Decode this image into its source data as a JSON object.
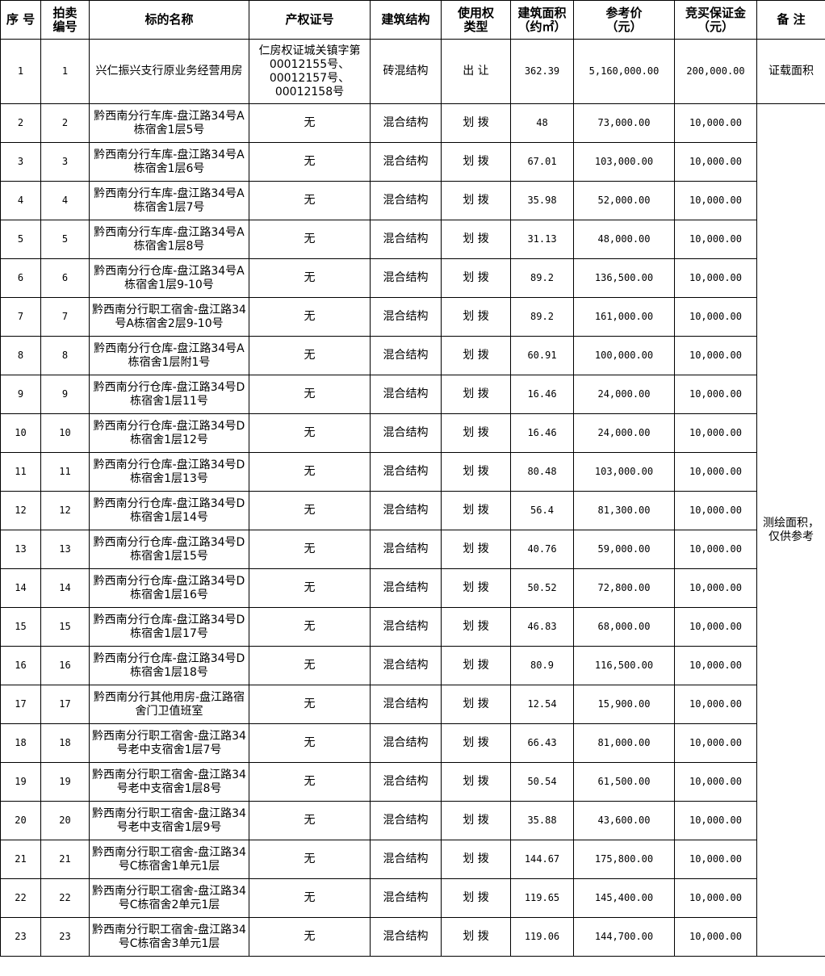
{
  "headers": [
    "序 号",
    "拍卖\n编号",
    "标的名称",
    "产权证号",
    "建筑结构",
    "使用权\n类型",
    "建筑面积\n（约㎡）",
    "参考价\n（元）",
    "竞买保证金\n（元）",
    "备 注"
  ],
  "rows": [
    {
      "seq": "1",
      "lot": "1",
      "name": "兴仁振兴支行原业务经营用房",
      "cert": "仁房权证城关镇字第00012155号、00012157号、00012158号",
      "structure": "砖混结构",
      "right": "出 让",
      "area": "362.39",
      "price": "5,160,000.00",
      "deposit": "200,000.00"
    },
    {
      "seq": "2",
      "lot": "2",
      "name": "黔西南分行车库-盘江路34号A栋宿舍1层5号",
      "cert": "无",
      "structure": "混合结构",
      "right": "划 拨",
      "area": "48",
      "price": "73,000.00",
      "deposit": "10,000.00"
    },
    {
      "seq": "3",
      "lot": "3",
      "name": "黔西南分行车库-盘江路34号A栋宿舍1层6号",
      "cert": "无",
      "structure": "混合结构",
      "right": "划 拨",
      "area": "67.01",
      "price": "103,000.00",
      "deposit": "10,000.00"
    },
    {
      "seq": "4",
      "lot": "4",
      "name": "黔西南分行车库-盘江路34号A栋宿舍1层7号",
      "cert": "无",
      "structure": "混合结构",
      "right": "划 拨",
      "area": "35.98",
      "price": "52,000.00",
      "deposit": "10,000.00"
    },
    {
      "seq": "5",
      "lot": "5",
      "name": "黔西南分行车库-盘江路34号A栋宿舍1层8号",
      "cert": "无",
      "structure": "混合结构",
      "right": "划 拨",
      "area": "31.13",
      "price": "48,000.00",
      "deposit": "10,000.00"
    },
    {
      "seq": "6",
      "lot": "6",
      "name": "黔西南分行仓库-盘江路34号A栋宿舍1层9-10号",
      "cert": "无",
      "structure": "混合结构",
      "right": "划 拨",
      "area": "89.2",
      "price": "136,500.00",
      "deposit": "10,000.00"
    },
    {
      "seq": "7",
      "lot": "7",
      "name": "黔西南分行职工宿舍-盘江路34号A栋宿舍2层9-10号",
      "cert": "无",
      "structure": "混合结构",
      "right": "划 拨",
      "area": "89.2",
      "price": "161,000.00",
      "deposit": "10,000.00"
    },
    {
      "seq": "8",
      "lot": "8",
      "name": "黔西南分行仓库-盘江路34号A栋宿舍1层附1号",
      "cert": "无",
      "structure": "混合结构",
      "right": "划 拨",
      "area": "60.91",
      "price": "100,000.00",
      "deposit": "10,000.00"
    },
    {
      "seq": "9",
      "lot": "9",
      "name": "黔西南分行仓库-盘江路34号D栋宿舍1层11号",
      "cert": "无",
      "structure": "混合结构",
      "right": "划 拨",
      "area": "16.46",
      "price": "24,000.00",
      "deposit": "10,000.00"
    },
    {
      "seq": "10",
      "lot": "10",
      "name": "黔西南分行仓库-盘江路34号D栋宿舍1层12号",
      "cert": "无",
      "structure": "混合结构",
      "right": "划 拨",
      "area": "16.46",
      "price": "24,000.00",
      "deposit": "10,000.00"
    },
    {
      "seq": "11",
      "lot": "11",
      "name": "黔西南分行仓库-盘江路34号D栋宿舍1层13号",
      "cert": "无",
      "structure": "混合结构",
      "right": "划 拨",
      "area": "80.48",
      "price": "103,000.00",
      "deposit": "10,000.00"
    },
    {
      "seq": "12",
      "lot": "12",
      "name": "黔西南分行仓库-盘江路34号D栋宿舍1层14号",
      "cert": "无",
      "structure": "混合结构",
      "right": "划 拨",
      "area": "56.4",
      "price": "81,300.00",
      "deposit": "10,000.00"
    },
    {
      "seq": "13",
      "lot": "13",
      "name": "黔西南分行仓库-盘江路34号D栋宿舍1层15号",
      "cert": "无",
      "structure": "混合结构",
      "right": "划 拨",
      "area": "40.76",
      "price": "59,000.00",
      "deposit": "10,000.00"
    },
    {
      "seq": "14",
      "lot": "14",
      "name": "黔西南分行仓库-盘江路34号D栋宿舍1层16号",
      "cert": "无",
      "structure": "混合结构",
      "right": "划 拨",
      "area": "50.52",
      "price": "72,800.00",
      "deposit": "10,000.00"
    },
    {
      "seq": "15",
      "lot": "15",
      "name": "黔西南分行仓库-盘江路34号D栋宿舍1层17号",
      "cert": "无",
      "structure": "混合结构",
      "right": "划 拨",
      "area": "46.83",
      "price": "68,000.00",
      "deposit": "10,000.00"
    },
    {
      "seq": "16",
      "lot": "16",
      "name": "黔西南分行仓库-盘江路34号D栋宿舍1层18号",
      "cert": "无",
      "structure": "混合结构",
      "right": "划 拨",
      "area": "80.9",
      "price": "116,500.00",
      "deposit": "10,000.00"
    },
    {
      "seq": "17",
      "lot": "17",
      "name": "黔西南分行其他用房-盘江路宿舍门卫值班室",
      "cert": "无",
      "structure": "混合结构",
      "right": "划 拨",
      "area": "12.54",
      "price": "15,900.00",
      "deposit": "10,000.00"
    },
    {
      "seq": "18",
      "lot": "18",
      "name": "黔西南分行职工宿舍-盘江路34号老中支宿舍1层7号",
      "cert": "无",
      "structure": "混合结构",
      "right": "划 拨",
      "area": "66.43",
      "price": "81,000.00",
      "deposit": "10,000.00"
    },
    {
      "seq": "19",
      "lot": "19",
      "name": "黔西南分行职工宿舍-盘江路34号老中支宿舍1层8号",
      "cert": "无",
      "structure": "混合结构",
      "right": "划 拨",
      "area": "50.54",
      "price": "61,500.00",
      "deposit": "10,000.00"
    },
    {
      "seq": "20",
      "lot": "20",
      "name": "黔西南分行职工宿舍-盘江路34号老中支宿舍1层9号",
      "cert": "无",
      "structure": "混合结构",
      "right": "划 拨",
      "area": "35.88",
      "price": "43,600.00",
      "deposit": "10,000.00"
    },
    {
      "seq": "21",
      "lot": "21",
      "name": "黔西南分行职工宿舍-盘江路34号C栋宿舍1单元1层",
      "cert": "无",
      "structure": "混合结构",
      "right": "划 拨",
      "area": "144.67",
      "price": "175,800.00",
      "deposit": "10,000.00"
    },
    {
      "seq": "22",
      "lot": "22",
      "name": "黔西南分行职工宿舍-盘江路34号C栋宿舍2单元1层",
      "cert": "无",
      "structure": "混合结构",
      "right": "划 拨",
      "area": "119.65",
      "price": "145,400.00",
      "deposit": "10,000.00"
    },
    {
      "seq": "23",
      "lot": "23",
      "name": "黔西南分行职工宿舍-盘江路34号C栋宿舍3单元1层",
      "cert": "无",
      "structure": "混合结构",
      "right": "划 拨",
      "area": "119.06",
      "price": "144,700.00",
      "deposit": "10,000.00"
    }
  ],
  "notes": {
    "first": "证载面积",
    "rest": "测绘面积，仅供参考"
  }
}
